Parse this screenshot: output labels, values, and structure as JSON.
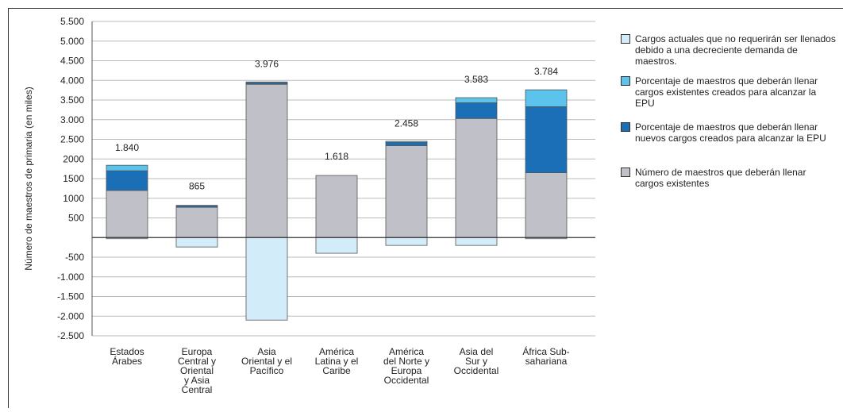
{
  "chart_data": {
    "type": "stacked_bar",
    "y_label": "Número de maestros de primaria (en miles)",
    "categories": [
      [
        "Estados",
        "Árabes"
      ],
      [
        "Europa",
        "Central y",
        "Oriental",
        "y Asia",
        "Central"
      ],
      [
        "Asia",
        "Oriental y el",
        "Pacífico"
      ],
      [
        "América",
        "Latina y el",
        "Caribe"
      ],
      [
        "América",
        "del Norte y",
        "Europa",
        "Occidental"
      ],
      [
        "Asia del",
        "Sur y",
        "Occidental"
      ],
      [
        "África Sub-",
        "sahariana"
      ]
    ],
    "series": [
      {
        "name": "Número de maestros que deberán llenar cargos existentes",
        "color": "#c0c0c8",
        "values": [
          1200,
          770,
          3900,
          1580,
          2340,
          3030,
          1650
        ]
      },
      {
        "name": "Porcentaje de maestros que deberán llenar nuevos cargos creados para alcanzar la EPU",
        "color": "#1a6fb6",
        "values": [
          500,
          40,
          40,
          0,
          80,
          400,
          1680
        ]
      },
      {
        "name": "Porcentaje de maestros que deberán llenar cargos existentes creados para alcanzar la EPU",
        "color": "#5cc3ec",
        "values": [
          140,
          10,
          20,
          0,
          30,
          130,
          430
        ]
      },
      {
        "name": "Cargos actuales que no requerirán ser llenados debido a una decreciente demanda de maestros.",
        "color": "#d3ecf9",
        "values": [
          -30,
          -240,
          -2100,
          -400,
          -200,
          -200,
          -30
        ]
      }
    ],
    "totals": {
      "values": [
        1840,
        865,
        3976,
        1618,
        2458,
        3583,
        3784
      ],
      "value_labels": [
        "1.840",
        "865",
        "3.976",
        "1.618",
        "2.458",
        "3.583",
        "3.784"
      ]
    },
    "ylim": [
      -2500,
      5500
    ],
    "yticks": [
      {
        "value": -2500,
        "label": "-2.500"
      },
      {
        "value": -2000,
        "label": "-2.000"
      },
      {
        "value": -1500,
        "label": "-1.500"
      },
      {
        "value": -1000,
        "label": "-1.000"
      },
      -500,
      500,
      1000,
      1500,
      2000,
      {
        "value": 2500,
        "label": "2.500"
      },
      {
        "value": 3000,
        "label": "3.000"
      },
      {
        "value": 3500,
        "label": "3.500"
      },
      {
        "value": 4000,
        "label": "4.000"
      },
      {
        "value": 4500,
        "label": "4.500"
      },
      {
        "value": 5000,
        "label": "5.000"
      },
      {
        "value": 5500,
        "label": "5.500"
      }
    ],
    "grid": true
  }
}
